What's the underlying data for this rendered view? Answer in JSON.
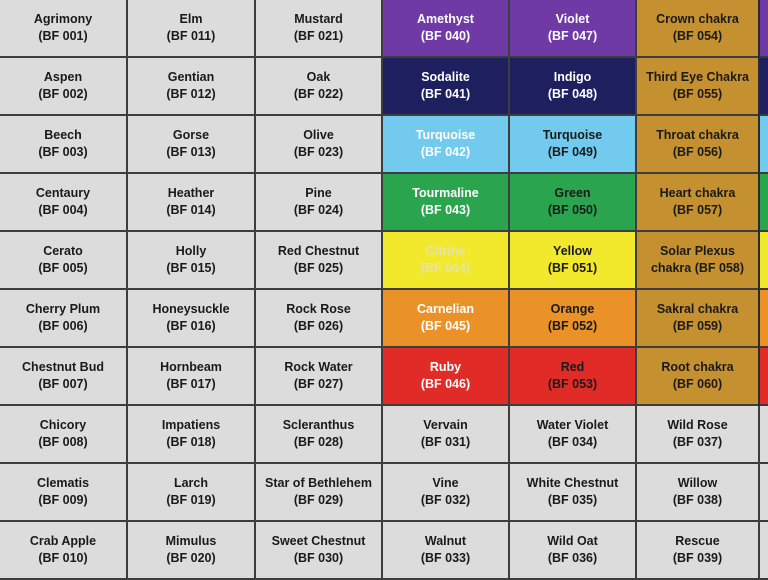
{
  "colors": {
    "gray": "#dcdcdc",
    "text_dark": "#1a1a1a",
    "amethyst": "#6f3aa6",
    "indigo": "#1e1f5e",
    "turquoise": "#72cbee",
    "green": "#2aa44d",
    "yellow": "#f2e92c",
    "orange": "#ea9228",
    "red": "#e12b26",
    "chakra_gold": "#c59030",
    "edge_dark": "#2a2a2a"
  },
  "grid": {
    "rows": [
      [
        {
          "name": "Agrimony",
          "code": "(BF 001)"
        },
        {
          "name": "Elm",
          "code": "(BF 011)"
        },
        {
          "name": "Mustard",
          "code": "(BF 021)"
        },
        {
          "name": "Amethyst",
          "code": "(BF 040)",
          "bg": "#6f3aa6",
          "fg": "#ffffff"
        },
        {
          "name": "Violet",
          "code": "(BF 047)",
          "bg": "#6f3aa6",
          "fg": "#ffffff"
        },
        {
          "name": "Crown chakra",
          "code": "(BF 054)",
          "bg": "#c59030",
          "fg": "#1a1a1a"
        }
      ],
      [
        {
          "name": "Aspen",
          "code": "(BF 002)"
        },
        {
          "name": "Gentian",
          "code": "(BF 012)"
        },
        {
          "name": "Oak",
          "code": "(BF 022)"
        },
        {
          "name": "Sodalite",
          "code": "(BF 041)",
          "bg": "#1e1f5e",
          "fg": "#ffffff"
        },
        {
          "name": "Indigo",
          "code": "(BF 048)",
          "bg": "#1e1f5e",
          "fg": "#ffffff"
        },
        {
          "name": "Third Eye Chakra",
          "code": "(BF 055)",
          "bg": "#c59030",
          "fg": "#1a1a1a"
        }
      ],
      [
        {
          "name": "Beech",
          "code": "(BF 003)"
        },
        {
          "name": "Gorse",
          "code": "(BF 013)"
        },
        {
          "name": "Olive",
          "code": "(BF 023)"
        },
        {
          "name": "Turquoise",
          "code": "(BF 042)",
          "bg": "#72cbee",
          "fg": "#ffffff"
        },
        {
          "name": "Turquoise",
          "code": "(BF 049)",
          "bg": "#72cbee",
          "fg": "#1a1a1a"
        },
        {
          "name": "Throat chakra",
          "code": "(BF 056)",
          "bg": "#c59030",
          "fg": "#1a1a1a"
        }
      ],
      [
        {
          "name": "Centaury",
          "code": "(BF 004)"
        },
        {
          "name": "Heather",
          "code": "(BF 014)"
        },
        {
          "name": "Pine",
          "code": "(BF 024)"
        },
        {
          "name": "Tourmaline",
          "code": "(BF 043)",
          "bg": "#2aa44d",
          "fg": "#ffffff"
        },
        {
          "name": "Green",
          "code": "(BF 050)",
          "bg": "#2aa44d",
          "fg": "#1a1a1a"
        },
        {
          "name": "Heart chakra",
          "code": "(BF 057)",
          "bg": "#c59030",
          "fg": "#1a1a1a"
        }
      ],
      [
        {
          "name": "Cerato",
          "code": "(BF 005)"
        },
        {
          "name": "Holly",
          "code": "(BF 015)"
        },
        {
          "name": "Red Chestnut",
          "code": "(BF 025)"
        },
        {
          "name": "Citrine",
          "code": "(BF 044)",
          "bg": "#f2e92c",
          "fg": "#e6e3a8"
        },
        {
          "name": "Yellow",
          "code": "(BF 051)",
          "bg": "#f2e92c",
          "fg": "#1a1a1a"
        },
        {
          "name": "Solar Plexus",
          "code": "chakra (BF 058)",
          "bg": "#c59030",
          "fg": "#1a1a1a"
        }
      ],
      [
        {
          "name": "Cherry Plum",
          "code": "(BF 006)"
        },
        {
          "name": "Honeysuckle",
          "code": "(BF 016)"
        },
        {
          "name": "Rock Rose",
          "code": "(BF 026)"
        },
        {
          "name": "Carnelian",
          "code": "(BF 045)",
          "bg": "#ea9228",
          "fg": "#ffffff"
        },
        {
          "name": "Orange",
          "code": "(BF 052)",
          "bg": "#ea9228",
          "fg": "#1a1a1a"
        },
        {
          "name": "Sakral chakra",
          "code": "(BF 059)",
          "bg": "#c59030",
          "fg": "#1a1a1a"
        }
      ],
      [
        {
          "name": "Chestnut Bud",
          "code": "(BF 007)"
        },
        {
          "name": "Hornbeam",
          "code": "(BF 017)"
        },
        {
          "name": "Rock Water",
          "code": "(BF 027)"
        },
        {
          "name": "Ruby",
          "code": "(BF 046)",
          "bg": "#e12b26",
          "fg": "#ffffff"
        },
        {
          "name": "Red",
          "code": "(BF 053)",
          "bg": "#e12b26",
          "fg": "#1a1a1a"
        },
        {
          "name": "Root chakra",
          "code": "(BF 060)",
          "bg": "#c59030",
          "fg": "#1a1a1a"
        }
      ],
      [
        {
          "name": "Chicory",
          "code": "(BF 008)"
        },
        {
          "name": "Impatiens",
          "code": "(BF 018)"
        },
        {
          "name": "Scleranthus",
          "code": "(BF 028)"
        },
        {
          "name": "Vervain",
          "code": "(BF 031)"
        },
        {
          "name": "Water Violet",
          "code": "(BF 034)"
        },
        {
          "name": "Wild Rose",
          "code": "(BF 037)"
        }
      ],
      [
        {
          "name": "Clematis",
          "code": "(BF 009)"
        },
        {
          "name": "Larch",
          "code": "(BF 019)"
        },
        {
          "name": "Star of Bethlehem",
          "code": "(BF 029)"
        },
        {
          "name": "Vine",
          "code": "(BF 032)"
        },
        {
          "name": "White Chestnut",
          "code": "(BF 035)"
        },
        {
          "name": "Willow",
          "code": "(BF 038)"
        }
      ],
      [
        {
          "name": "Crab Apple",
          "code": "(BF 010)"
        },
        {
          "name": "Mimulus",
          "code": "(BF 020)"
        },
        {
          "name": "Sweet Chestnut",
          "code": "(BF 030)"
        },
        {
          "name": "Walnut",
          "code": "(BF 033)"
        },
        {
          "name": "Wild Oat",
          "code": "(BF 036)"
        },
        {
          "name": "Rescue",
          "code": "(BF 039)"
        }
      ]
    ],
    "edge_strip": [
      {
        "bg": "#6f3aa6"
      },
      {
        "bg": "#1e1f5e"
      },
      {
        "bg": "#72cbee"
      },
      {
        "bg": "#2aa44d"
      },
      {
        "bg": "#f2e92c"
      },
      {
        "bg": "#ea9228"
      },
      {
        "bg": "#e12b26"
      },
      {
        "bg": "#dcdcdc"
      },
      {
        "bg": "#dcdcdc"
      },
      {
        "bg": "#dcdcdc"
      }
    ]
  }
}
